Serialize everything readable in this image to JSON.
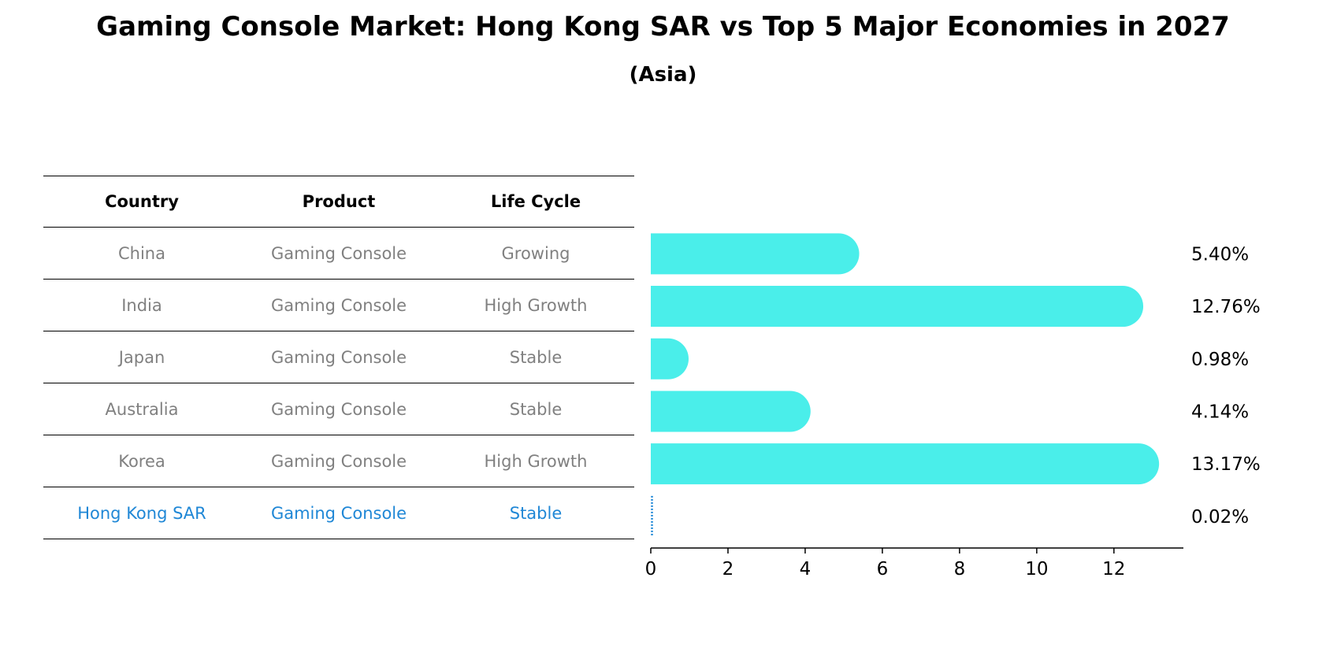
{
  "title": "Gaming Console Market: Hong Kong SAR vs Top 5 Major Economies in 2027",
  "subtitle": "(Asia)",
  "table": {
    "headers": [
      "Country",
      "Product",
      "Life Cycle"
    ],
    "rows": [
      {
        "country": "China",
        "product": "Gaming Console",
        "life_cycle": "Growing"
      },
      {
        "country": "India",
        "product": "Gaming Console",
        "life_cycle": "High Growth"
      },
      {
        "country": "Japan",
        "product": "Gaming Console",
        "life_cycle": "Stable"
      },
      {
        "country": "Australia",
        "product": "Gaming Console",
        "life_cycle": "Stable"
      },
      {
        "country": "Korea",
        "product": "Gaming Console",
        "life_cycle": "High Growth"
      },
      {
        "country": "Hong Kong SAR",
        "product": "Gaming Console",
        "life_cycle": "Stable"
      }
    ]
  },
  "colors": {
    "bar": "#4aeeea",
    "highlight": "#1f87d6",
    "row_text": "#808080"
  },
  "chart_data": {
    "type": "bar",
    "orientation": "horizontal",
    "categories": [
      "China",
      "India",
      "Japan",
      "Australia",
      "Korea",
      "Hong Kong SAR"
    ],
    "values": [
      5.4,
      12.76,
      0.98,
      4.14,
      13.17,
      0.02
    ],
    "value_labels": [
      "5.40%",
      "12.76%",
      "0.98%",
      "4.14%",
      "13.17%",
      "0.02%"
    ],
    "highlight": "Hong Kong SAR",
    "xticks": [
      0,
      2,
      4,
      6,
      8,
      10,
      12
    ],
    "xlim": [
      0,
      13.8
    ],
    "grid": false
  }
}
